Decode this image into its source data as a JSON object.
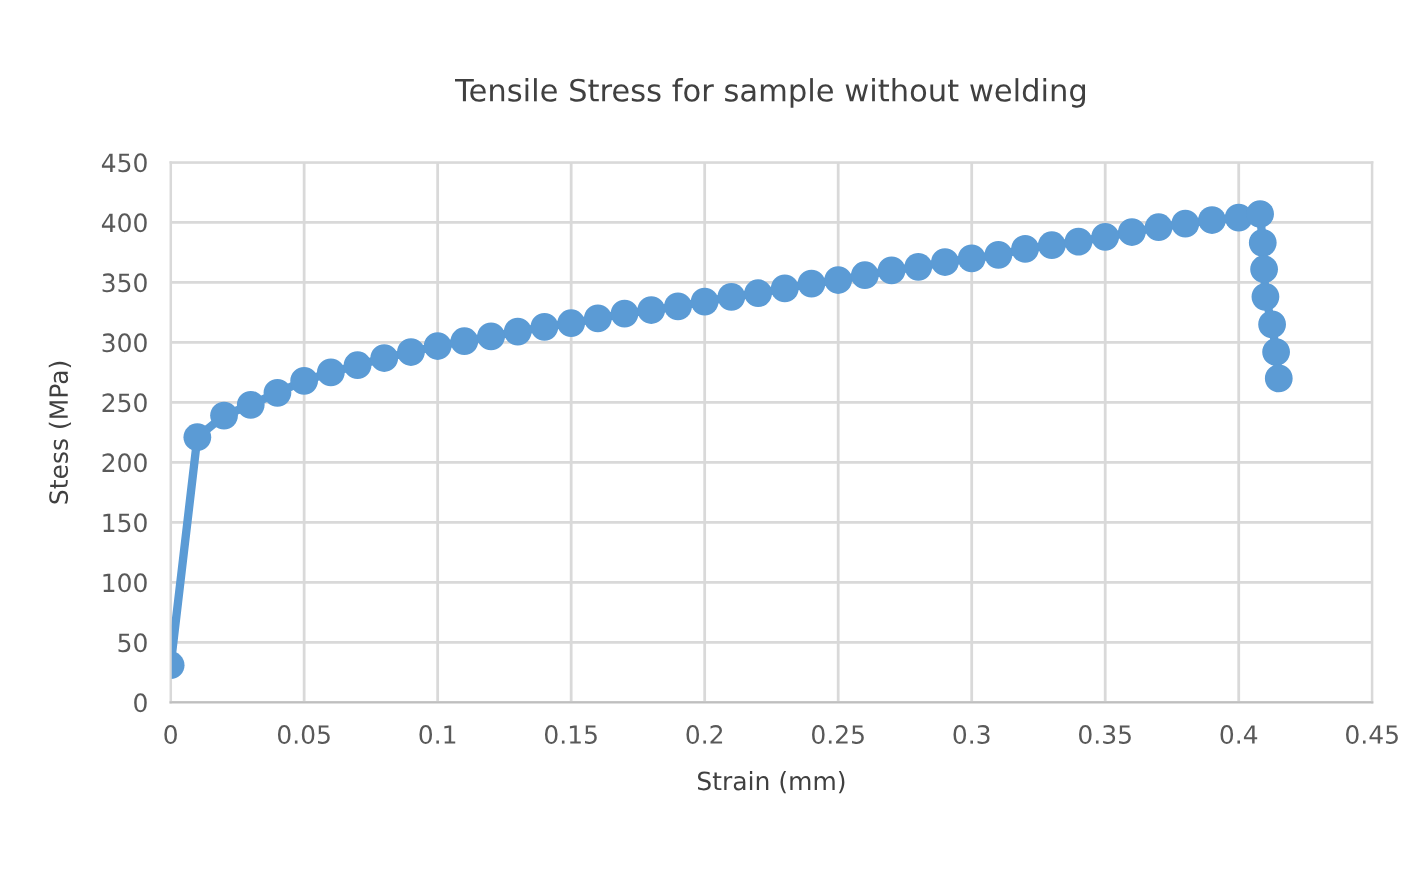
{
  "chart_data": {
    "type": "line",
    "title": "Tensile Stress for sample without welding",
    "xlabel": "Strain (mm)",
    "ylabel": "Stess (MPa)",
    "series": [
      {
        "color": "#5b9bd5",
        "x": [
          0,
          0.01,
          0.02,
          0.03,
          0.04,
          0.05,
          0.06,
          0.07,
          0.08,
          0.09,
          0.1,
          0.11,
          0.12,
          0.13,
          0.14,
          0.15,
          0.16,
          0.17,
          0.18,
          0.19,
          0.2,
          0.21,
          0.22,
          0.23,
          0.24,
          0.25,
          0.26,
          0.27,
          0.28,
          0.29,
          0.3,
          0.31,
          0.32,
          0.33,
          0.34,
          0.35,
          0.36,
          0.37,
          0.38,
          0.39,
          0.4,
          0.408,
          0.409,
          0.4095,
          0.41,
          0.4125,
          0.414,
          0.415
        ],
        "values": [
          31,
          221,
          239,
          248,
          258,
          268,
          275,
          281,
          287,
          292,
          297,
          301,
          305,
          309,
          313,
          316,
          320,
          324,
          327,
          330,
          334,
          338,
          341,
          345,
          349,
          352,
          356,
          360,
          363,
          367,
          370,
          373,
          378,
          381,
          384,
          388,
          392,
          396,
          399,
          402,
          404,
          407,
          383,
          361,
          338,
          315,
          292,
          270
        ]
      }
    ],
    "xlim": [
      0,
      0.45
    ],
    "xticks": [
      0,
      0.05,
      0.1,
      0.15,
      0.2,
      0.25,
      0.3,
      0.35,
      0.4,
      0.45
    ],
    "ylim": [
      0,
      450
    ],
    "yticks": [
      0,
      50,
      100,
      150,
      200,
      250,
      300,
      350,
      400,
      450
    ],
    "grid": true,
    "marker": "circle",
    "line_style": "solid"
  }
}
